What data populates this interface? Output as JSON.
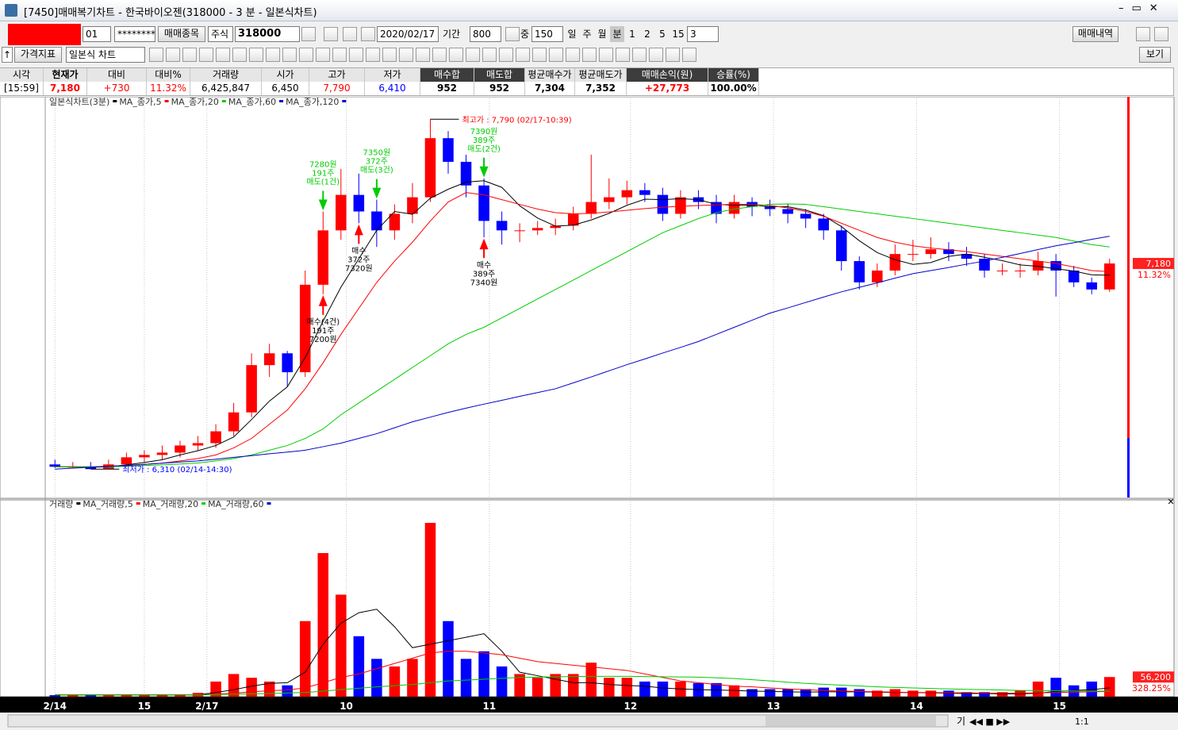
{
  "window": {
    "title": "[7450]매매복기차트 - 한국바이오젠(318000 - 3 분 - 일본식차트)"
  },
  "toolbar": {
    "account": "01",
    "password": "********",
    "stock_btn": "매매종목",
    "market": "주식",
    "code": "318000",
    "date": "2020/02/17",
    "period_label": "기간",
    "period": "800",
    "mid_label": "중",
    "mid": "150",
    "intervals": [
      "일",
      "주",
      "월",
      "분",
      "1",
      "2",
      "5",
      "15"
    ],
    "interval_value": "3",
    "history_btn": "매매내역",
    "indicator_btn": "가격지표",
    "chart_type": "일본식 차트",
    "view_btn": "보기"
  },
  "info_table": {
    "headers": [
      "시각",
      "현재가",
      "대비",
      "대비%",
      "거래량",
      "시가",
      "고가",
      "저가",
      "매수합",
      "매도합",
      "평균매수가",
      "평균매도가",
      "매매손익(원)",
      "승률(%)"
    ],
    "values": [
      "[15:59]",
      "7,180",
      "+730",
      "11.32%",
      "6,425,847",
      "6,450",
      "7,790",
      "6,410",
      "952",
      "952",
      "7,304",
      "7,352",
      "+27,773",
      "100.00%"
    ]
  },
  "status": {
    "buttons": [
      "기",
      "1:1"
    ]
  },
  "chart_data": [
    {
      "type": "candlestick",
      "title": "일본식차트(3분)",
      "up_color": "#ff0000",
      "down_color": "#0000ff",
      "open": [
        6330,
        6320,
        6320,
        6310,
        6330,
        6360,
        6370,
        6380,
        6410,
        6420,
        6470,
        6550,
        6750,
        6800,
        6720,
        7090,
        7320,
        7470,
        7400,
        7320,
        7390,
        7460,
        7710,
        7610,
        7510,
        7360,
        7320,
        7320,
        7330,
        7340,
        7390,
        7440,
        7460,
        7490,
        7470,
        7390,
        7460,
        7440,
        7390,
        7440,
        7420,
        7410,
        7390,
        7370,
        7320,
        7190,
        7100,
        7150,
        7220,
        7220,
        7240,
        7220,
        7200,
        7150,
        7150,
        7150,
        7190,
        7150,
        7100,
        7070
      ],
      "high": [
        6350,
        6340,
        6340,
        6350,
        6380,
        6390,
        6410,
        6430,
        6450,
        6500,
        6590,
        6800,
        6840,
        6810,
        7150,
        7400,
        7580,
        7560,
        7450,
        7430,
        7520,
        7790,
        7740,
        7640,
        7540,
        7400,
        7350,
        7360,
        7370,
        7420,
        7640,
        7540,
        7530,
        7520,
        7500,
        7490,
        7490,
        7470,
        7470,
        7460,
        7450,
        7430,
        7410,
        7390,
        7340,
        7210,
        7180,
        7260,
        7280,
        7290,
        7270,
        7250,
        7220,
        7180,
        7180,
        7230,
        7220,
        7170,
        7120,
        7200
      ],
      "low": [
        6315,
        6315,
        6310,
        6315,
        6320,
        6340,
        6350,
        6360,
        6390,
        6400,
        6450,
        6530,
        6700,
        6660,
        6700,
        7050,
        7280,
        7350,
        7250,
        7280,
        7350,
        7440,
        7560,
        7460,
        7290,
        7260,
        7270,
        7300,
        7300,
        7320,
        7370,
        7410,
        7430,
        7440,
        7360,
        7370,
        7410,
        7350,
        7370,
        7380,
        7380,
        7350,
        7330,
        7280,
        7150,
        7070,
        7080,
        7130,
        7190,
        7200,
        7190,
        7170,
        7120,
        7130,
        7120,
        7130,
        7040,
        7080,
        7050,
        7060
      ],
      "close": [
        6320,
        6320,
        6310,
        6330,
        6360,
        6370,
        6380,
        6410,
        6420,
        6470,
        6550,
        6750,
        6800,
        6720,
        7090,
        7320,
        7470,
        7400,
        7320,
        7390,
        7460,
        7710,
        7610,
        7510,
        7360,
        7320,
        7320,
        7330,
        7340,
        7390,
        7440,
        7460,
        7490,
        7470,
        7390,
        7460,
        7440,
        7390,
        7440,
        7420,
        7410,
        7390,
        7370,
        7320,
        7190,
        7100,
        7150,
        7220,
        7220,
        7240,
        7220,
        7200,
        7150,
        7150,
        7150,
        7190,
        7150,
        7100,
        7070,
        7180
      ],
      "series": [
        {
          "name": "MA_종가,5",
          "color": "#000000",
          "values": [
            6320,
            6320,
            6318,
            6320,
            6328,
            6338,
            6350,
            6370,
            6388,
            6410,
            6446,
            6520,
            6598,
            6658,
            6782,
            6936,
            7080,
            7200,
            7320,
            7400,
            7388,
            7456,
            7494,
            7524,
            7530,
            7502,
            7424,
            7372,
            7338,
            7342,
            7364,
            7392,
            7426,
            7452,
            7450,
            7454,
            7450,
            7430,
            7426,
            7426,
            7420,
            7420,
            7406,
            7382,
            7336,
            7276,
            7226,
            7196,
            7176,
            7184,
            7210,
            7220,
            7206,
            7192,
            7174,
            7168,
            7158,
            7148,
            7132,
            7130
          ]
        },
        {
          "name": "MA_종가,20",
          "color": "#ff0000",
          "values": [
            6320,
            6320,
            6320,
            6322,
            6325,
            6330,
            6335,
            6345,
            6355,
            6370,
            6400,
            6440,
            6500,
            6560,
            6650,
            6760,
            6880,
            6990,
            7100,
            7190,
            7270,
            7360,
            7440,
            7480,
            7470,
            7450,
            7430,
            7410,
            7395,
            7390,
            7392,
            7398,
            7405,
            7412,
            7418,
            7422,
            7425,
            7428,
            7430,
            7430,
            7425,
            7415,
            7400,
            7380,
            7350,
            7320,
            7290,
            7270,
            7255,
            7245,
            7238,
            7230,
            7220,
            7210,
            7200,
            7190,
            7180,
            7165,
            7150,
            7145
          ]
        },
        {
          "name": "MA_종가,60",
          "color": "#00cc00",
          "values": [
            6320,
            6320,
            6320,
            6320,
            6322,
            6325,
            6328,
            6332,
            6336,
            6345,
            6355,
            6370,
            6390,
            6410,
            6440,
            6480,
            6540,
            6590,
            6640,
            6690,
            6740,
            6790,
            6840,
            6880,
            6910,
            6950,
            6990,
            7030,
            7070,
            7110,
            7150,
            7190,
            7230,
            7270,
            7310,
            7340,
            7370,
            7395,
            7410,
            7420,
            7430,
            7432,
            7430,
            7420,
            7410,
            7400,
            7390,
            7380,
            7370,
            7360,
            7350,
            7340,
            7330,
            7320,
            7310,
            7300,
            7290,
            7275,
            7260,
            7250
          ]
        },
        {
          "name": "MA_종가,120",
          "color": "#0000cc",
          "values": [
            6310,
            6314,
            6318,
            6322,
            6326,
            6330,
            6335,
            6340,
            6345,
            6352,
            6360,
            6367,
            6375,
            6382,
            6390,
            6405,
            6420,
            6440,
            6460,
            6485,
            6510,
            6530,
            6550,
            6568,
            6585,
            6601,
            6618,
            6634,
            6650,
            6675,
            6700,
            6726,
            6752,
            6776,
            6801,
            6825,
            6850,
            6880,
            6910,
            6940,
            6970,
            6992,
            7015,
            7038,
            7060,
            7079,
            7098,
            7118,
            7137,
            7150,
            7163,
            7177,
            7190,
            7206,
            7222,
            7239,
            7255,
            7268,
            7282,
            7295
          ]
        }
      ],
      "xlim": [
        -0.5,
        59.5
      ],
      "ylim": [
        6190,
        7885
      ],
      "xticks": [
        {
          "value": 0,
          "label": "2/14"
        },
        {
          "value": 5,
          "label": "15"
        },
        {
          "value": 8.5,
          "label": "2/17"
        },
        {
          "value": 16.3,
          "label": "10"
        },
        {
          "value": 24.3,
          "label": "11"
        },
        {
          "value": 32.2,
          "label": "12"
        },
        {
          "value": 40.2,
          "label": "13"
        },
        {
          "value": 48.2,
          "label": "14"
        },
        {
          "value": 56.2,
          "label": "15"
        }
      ],
      "high_label": "최고가 : 7,790 (02/17-10:39)",
      "low_label": "최저가 : 6,310 (02/14-14:30)",
      "current": {
        "value": 7180,
        "label": "7,180"
      },
      "change_label": "11.32%",
      "sells": [
        [
          "7280원",
          "191주",
          "매도(1건)"
        ],
        [
          "7350원",
          "372주",
          "매도(3건)"
        ],
        [
          "7390원",
          "389주",
          "매도(2건)"
        ]
      ],
      "buys": [
        [
          "매수(4건)",
          "191주",
          "7200원"
        ],
        [
          "매수",
          "372주",
          "7320원"
        ],
        [
          "매수",
          "389주",
          "7340원"
        ]
      ]
    },
    {
      "type": "bar",
      "title": "거래량",
      "up_color": "#ff0000",
      "down_color": "#0000ff",
      "values": [
        4300,
        4300,
        4300,
        4300,
        6500,
        6500,
        6500,
        6500,
        10800,
        43200,
        64800,
        54000,
        43200,
        32400,
        216100,
        410600,
        291700,
        172900,
        108100,
        86400,
        108100,
        497000,
        216100,
        108100,
        129700,
        86400,
        64800,
        54000,
        64800,
        64800,
        97200,
        54000,
        54000,
        43200,
        43200,
        43200,
        38900,
        38900,
        32400,
        21600,
        21600,
        21600,
        21600,
        25900,
        25900,
        21600,
        17300,
        21600,
        17300,
        17300,
        17300,
        13000,
        13000,
        13000,
        17300,
        43200,
        54000,
        32400,
        43200,
        56200
      ],
      "series": [
        {
          "name": "MA_거래량,5",
          "color": "#000000",
          "values": [
            5000,
            5000,
            5000,
            5000,
            5000,
            5000,
            5000,
            5000,
            5000,
            12000,
            20000,
            30000,
            38000,
            40000,
            70000,
            150000,
            210000,
            240000,
            250000,
            200000,
            140000,
            150000,
            160000,
            170000,
            180000,
            130000,
            70000,
            60000,
            50000,
            40000,
            40000,
            35000,
            32000,
            30000,
            25000,
            22000,
            20000,
            19000,
            18000,
            16000,
            15000,
            14000,
            13000,
            14000,
            14000,
            14000,
            13000,
            12000,
            12000,
            11000,
            10000,
            9000,
            9000,
            8000,
            8000,
            10000,
            15000,
            18000,
            20000,
            25000
          ]
        },
        {
          "name": "MA_거래량,20",
          "color": "#ff0000",
          "values": [
            5000,
            5000,
            5000,
            5000,
            5000,
            5000,
            5000,
            5000,
            5000,
            7000,
            10000,
            14000,
            17000,
            19000,
            25000,
            40000,
            55000,
            65000,
            80000,
            95000,
            110000,
            125000,
            130000,
            130000,
            125000,
            120000,
            110000,
            100000,
            95000,
            90000,
            85000,
            80000,
            75000,
            65000,
            55000,
            45000,
            40000,
            35000,
            30000,
            28000,
            25000,
            22000,
            20000,
            18000,
            16000,
            15000,
            14000,
            13000,
            12000,
            12000,
            11000,
            11000,
            10000,
            10000,
            10000,
            11000,
            12000,
            13000,
            14000,
            15000
          ]
        },
        {
          "name": "MA_거래량,60",
          "color": "#00cc00",
          "values": [
            5000,
            5000,
            5000,
            5000,
            5000,
            5000,
            5000,
            5000,
            5000,
            6000,
            7000,
            8000,
            9000,
            10500,
            12000,
            16000,
            20000,
            24000,
            28000,
            31500,
            35000,
            40000,
            45000,
            47500,
            50000,
            52500,
            55000,
            56000,
            57000,
            57500,
            58000,
            58000,
            58000,
            57500,
            57000,
            56500,
            56000,
            54000,
            52000,
            48500,
            45000,
            41500,
            38000,
            35500,
            33000,
            30500,
            28000,
            26500,
            25000,
            23500,
            22000,
            21000,
            20000,
            19000,
            18000,
            17500,
            17000,
            16500,
            16000,
            16000
          ]
        }
      ],
      "ylim": [
        0,
        540000
      ],
      "current": {
        "value": 56200,
        "label": "56,200"
      },
      "ratio_label": "328.25%"
    }
  ]
}
